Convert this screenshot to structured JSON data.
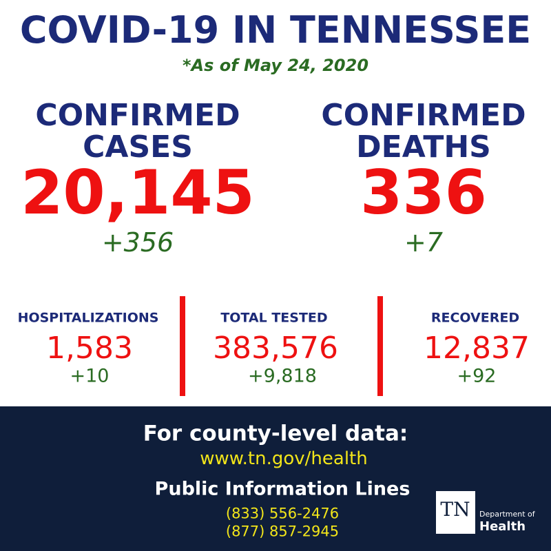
{
  "header": {
    "title": "COVID-19 IN TENNESSEE",
    "subtitle": "*As of May 24, 2020"
  },
  "primary": [
    {
      "label_lines": [
        "CONFIRMED",
        "CASES"
      ],
      "value": "20,145",
      "change": "+356"
    },
    {
      "label_lines": [
        "CONFIRMED",
        "DEATHS"
      ],
      "value": "336",
      "change": "+7"
    }
  ],
  "secondary": [
    {
      "label": "HOSPITALIZATIONS",
      "value": "1,583",
      "change": "+10"
    },
    {
      "label": "TOTAL TESTED",
      "value": "383,576",
      "change": "+9,818"
    },
    {
      "label": "RECOVERED",
      "value": "12,837",
      "change": "+92"
    }
  ],
  "footer": {
    "heading": "For county-level data:",
    "url": "www.tn.gov/health",
    "lines_heading": "Public Information Lines",
    "phones": [
      "(833) 556-2476",
      "(877) 857-2945"
    ],
    "logo": {
      "mark": "TN",
      "line1": "Department of",
      "line2": "Health"
    }
  }
}
